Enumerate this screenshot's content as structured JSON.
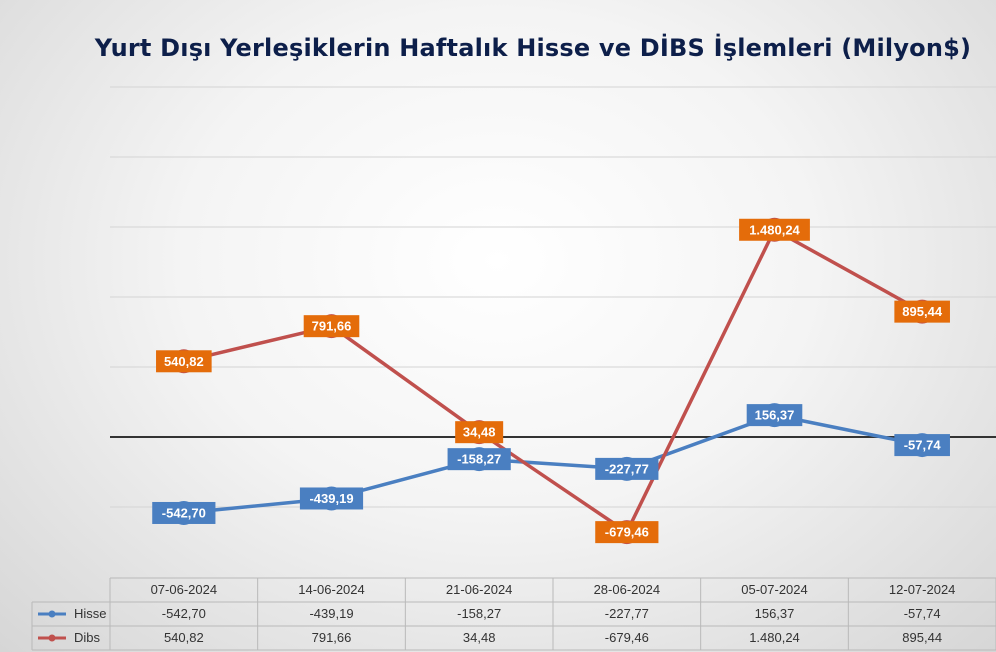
{
  "chart_data": {
    "type": "line",
    "title": "Yurt Dışı Yerleşiklerin Haftalık Hisse ve DİBS İşlemleri (Milyon$)",
    "categories": [
      "07-06-2024",
      "14-06-2024",
      "21-06-2024",
      "28-06-2024",
      "05-07-2024",
      "12-07-2024"
    ],
    "series": [
      {
        "name": "Hisse",
        "color": "#4a7fc1",
        "label_bg": "#4a7fc1",
        "values": [
          -542.7,
          -439.19,
          -158.27,
          -227.77,
          156.37,
          -57.74
        ],
        "labels": [
          "-542,70",
          "-439,19",
          "-158,27",
          "-227,77",
          "156,37",
          "-57,74"
        ]
      },
      {
        "name": "Dibs",
        "color": "#c0504d",
        "label_bg": "#e46c0a",
        "values": [
          540.82,
          791.66,
          34.48,
          -679.46,
          1480.24,
          895.44
        ],
        "labels": [
          "540,82",
          "791,66",
          "34,48",
          "-679,46",
          "1.480,24",
          "895,44"
        ]
      }
    ],
    "ylim": [
      -1000,
      2500
    ],
    "grid": true,
    "legend": "data-table"
  }
}
